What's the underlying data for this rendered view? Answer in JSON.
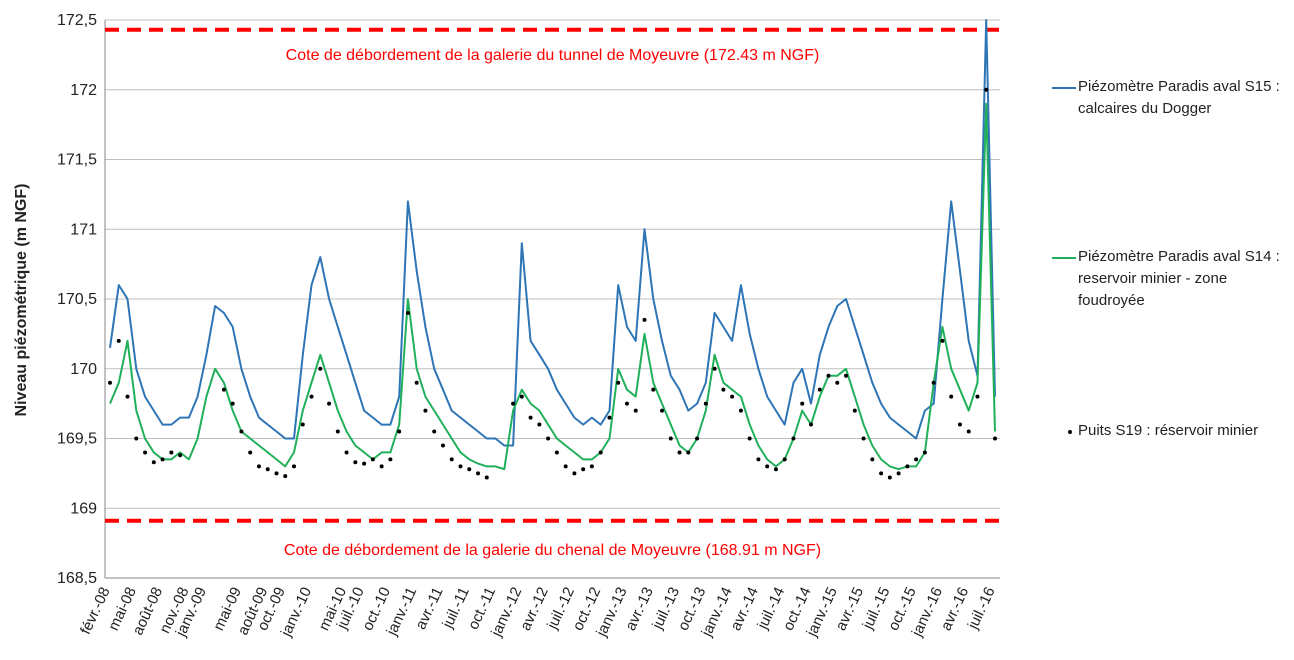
{
  "chart_data": {
    "type": "line",
    "y_label": "Niveau piézométrique (m NGF)",
    "ylim": [
      168.5,
      172.5
    ],
    "yticks": [
      {
        "value": 168.5,
        "label": "168,5"
      },
      169,
      {
        "value": 169.5,
        "label": "169,5"
      },
      170,
      {
        "value": 170.5,
        "label": "170,5"
      },
      171,
      {
        "value": 171.5,
        "label": "171,5"
      },
      172,
      {
        "value": 172.5,
        "label": "172,5"
      }
    ],
    "grid": true,
    "legend": "right",
    "categories": [
      "févr.-08",
      null,
      null,
      "mai-08",
      null,
      null,
      "août-08",
      null,
      null,
      "nov.-08",
      null,
      "janv.-09",
      null,
      null,
      null,
      "mai-09",
      null,
      null,
      "août-09",
      null,
      "oct.-09",
      null,
      null,
      "janv.-10",
      null,
      null,
      null,
      "mai-10",
      null,
      "juil.-10",
      null,
      null,
      "oct.-10",
      null,
      null,
      "janv.-11",
      null,
      null,
      "avr.-11",
      null,
      null,
      "juil.-11",
      null,
      null,
      "oct.-11",
      null,
      null,
      "janv.-12",
      null,
      null,
      "avr.-12",
      null,
      null,
      "juil.-12",
      null,
      null,
      "oct.-12",
      null,
      null,
      "janv.-13",
      null,
      null,
      "avr.-13",
      null,
      null,
      "juil.-13",
      null,
      null,
      "oct.-13",
      null,
      null,
      "janv.-14",
      null,
      null,
      "avr.-14",
      null,
      null,
      "juil.-14",
      null,
      null,
      "oct.-14",
      null,
      null,
      "janv.-15",
      null,
      null,
      "avr.-15",
      null,
      null,
      "juil.-15",
      null,
      null,
      "oct.-15",
      null,
      null,
      "janv.-16",
      null,
      null,
      "avr.-16",
      null,
      null,
      "juil.-16"
    ],
    "series": [
      {
        "name": "Piézomètre Paradis aval S15 : calcaires du Dogger",
        "color": "#2e75b6",
        "line_style": "solid",
        "values": [
          170.15,
          170.6,
          170.5,
          170.0,
          169.8,
          169.7,
          169.6,
          169.6,
          169.65,
          169.65,
          169.8,
          170.1,
          170.45,
          170.4,
          170.3,
          170.0,
          169.8,
          169.65,
          169.6,
          169.55,
          169.5,
          169.5,
          170.1,
          170.6,
          170.8,
          170.5,
          170.3,
          170.1,
          169.9,
          169.7,
          169.65,
          169.6,
          169.6,
          169.8,
          171.2,
          170.7,
          170.3,
          170.0,
          169.85,
          169.7,
          169.65,
          169.6,
          169.55,
          169.5,
          169.5,
          169.45,
          169.45,
          170.9,
          170.2,
          170.1,
          170.0,
          169.85,
          169.75,
          169.65,
          169.6,
          169.65,
          169.6,
          169.7,
          170.6,
          170.3,
          170.2,
          171.0,
          170.5,
          170.2,
          169.95,
          169.85,
          169.7,
          169.75,
          169.9,
          170.4,
          170.3,
          170.2,
          170.6,
          170.25,
          170.0,
          169.8,
          169.7,
          169.6,
          169.9,
          170.0,
          169.75,
          170.1,
          170.3,
          170.45,
          170.5,
          170.3,
          170.1,
          169.9,
          169.75,
          169.65,
          169.6,
          169.55,
          169.5,
          169.7,
          169.75,
          170.5,
          171.2,
          170.7,
          170.2,
          169.95,
          172.5,
          169.8
        ]
      },
      {
        "name": "Piézomètre Paradis aval S14 : reservoir minier - zone foudroyée",
        "color": "#21b05a",
        "line_style": "solid",
        "values": [
          169.75,
          169.9,
          170.2,
          169.7,
          169.5,
          169.4,
          169.35,
          169.35,
          169.4,
          169.35,
          169.5,
          169.8,
          170.0,
          169.9,
          169.7,
          169.55,
          169.5,
          169.45,
          169.4,
          169.35,
          169.3,
          169.4,
          169.7,
          169.9,
          170.1,
          169.9,
          169.7,
          169.55,
          169.45,
          169.4,
          169.35,
          169.4,
          169.4,
          169.6,
          170.5,
          170.0,
          169.8,
          169.7,
          169.6,
          169.5,
          169.4,
          169.35,
          169.32,
          169.3,
          169.3,
          169.28,
          169.7,
          169.85,
          169.75,
          169.7,
          169.6,
          169.5,
          169.45,
          169.4,
          169.35,
          169.35,
          169.4,
          169.5,
          170.0,
          169.85,
          169.8,
          170.25,
          169.9,
          169.75,
          169.6,
          169.45,
          169.4,
          169.5,
          169.7,
          170.1,
          169.9,
          169.85,
          169.8,
          169.6,
          169.45,
          169.35,
          169.3,
          169.35,
          169.5,
          169.7,
          169.6,
          169.8,
          169.95,
          169.95,
          170.0,
          169.8,
          169.6,
          169.45,
          169.35,
          169.3,
          169.28,
          169.3,
          169.3,
          169.4,
          169.9,
          170.3,
          170.0,
          169.85,
          169.7,
          169.9,
          171.9,
          169.55
        ]
      },
      {
        "name": "Puits S19 : réservoir minier",
        "color": "#000000",
        "line_style": "points",
        "values": [
          169.9,
          170.2,
          169.8,
          169.5,
          169.4,
          169.33,
          169.35,
          169.4,
          169.38,
          null,
          null,
          null,
          null,
          169.85,
          169.75,
          169.55,
          169.4,
          169.3,
          169.28,
          169.25,
          169.23,
          169.3,
          169.6,
          169.8,
          170.0,
          169.75,
          169.55,
          169.4,
          169.33,
          169.32,
          169.35,
          169.3,
          169.35,
          169.55,
          170.4,
          169.9,
          169.7,
          169.55,
          169.45,
          169.35,
          169.3,
          169.28,
          169.25,
          169.22,
          null,
          null,
          169.75,
          169.8,
          169.65,
          169.6,
          169.5,
          169.4,
          169.3,
          169.25,
          169.28,
          169.3,
          169.4,
          169.65,
          169.9,
          169.75,
          169.7,
          170.35,
          169.85,
          169.7,
          169.5,
          169.4,
          169.4,
          169.5,
          169.75,
          170.0,
          169.85,
          169.8,
          169.7,
          169.5,
          169.35,
          169.3,
          169.28,
          169.35,
          169.5,
          169.75,
          169.6,
          169.85,
          169.95,
          169.9,
          169.95,
          169.7,
          169.5,
          169.35,
          169.25,
          169.22,
          169.25,
          169.3,
          169.35,
          169.4,
          169.9,
          170.2,
          169.8,
          169.6,
          169.55,
          169.8,
          172.0,
          169.5
        ]
      }
    ],
    "reference_lines": [
      {
        "value": 172.43,
        "label": "Cote de débordement de la galerie du tunnel de Moyeuvre (172.43 m NGF)",
        "color": "#ff0000"
      },
      {
        "value": 168.91,
        "label": "Cote de débordement de la galerie du chenal de Moyeuvre (168.91 m NGF)",
        "color": "#ff0000"
      }
    ]
  }
}
